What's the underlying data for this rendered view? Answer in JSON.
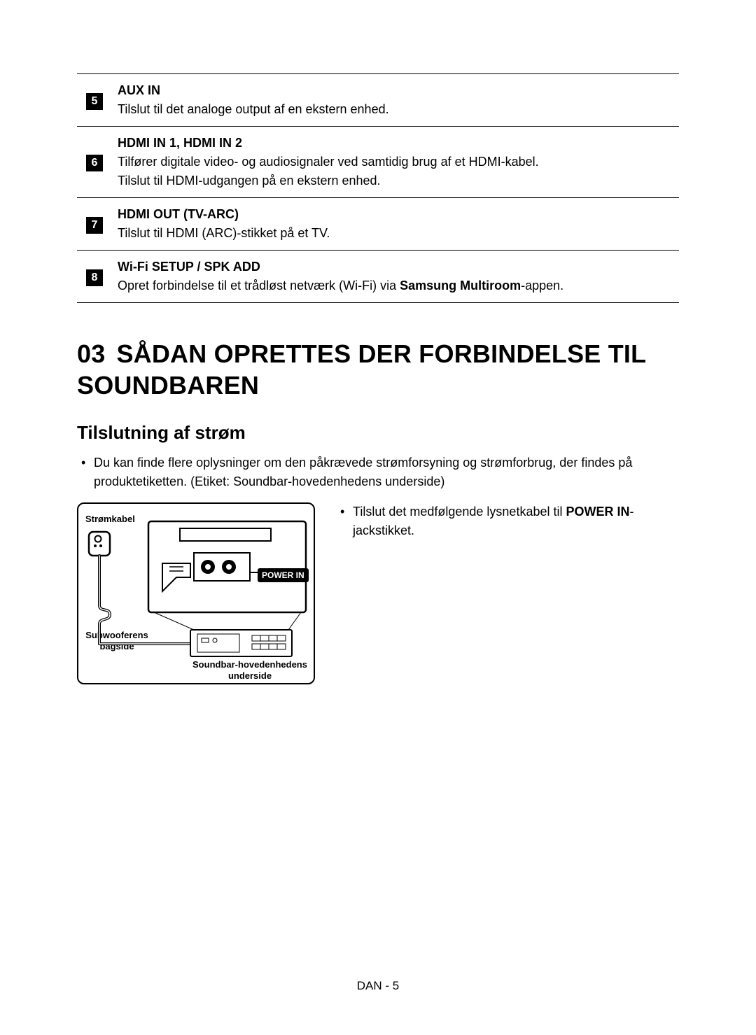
{
  "table": {
    "rows": [
      {
        "num": "5",
        "title": "AUX IN",
        "lines": [
          "Tilslut til det analoge output af en ekstern enhed."
        ]
      },
      {
        "num": "6",
        "title": "HDMI IN 1, HDMI IN 2",
        "lines": [
          "Tilfører digitale video- og audiosignaler ved samtidig brug af et HDMI-kabel.",
          "Tilslut til HDMI-udgangen på en ekstern enhed."
        ]
      },
      {
        "num": "7",
        "title": "HDMI OUT (TV-ARC)",
        "lines": [
          "Tilslut til HDMI (ARC)-stikket på et TV."
        ]
      },
      {
        "num": "8",
        "title": "Wi-Fi SETUP / SPK ADD",
        "lines_rich": [
          {
            "pre": "Opret forbindelse til et trådløst netværk (Wi-Fi) via ",
            "bold": "Samsung Multiroom",
            "post": "-appen."
          }
        ]
      }
    ]
  },
  "section": {
    "number": "03",
    "title": "SÅDAN OPRETTES DER FORBINDELSE TIL SOUNDBAREN"
  },
  "subhead": "Tilslutning af strøm",
  "bullets": {
    "b1": "Du kan finde flere oplysninger om den påkrævede strømforsyning og strømforbrug, der findes på produktetiketten. (Etiket: Soundbar-hovedenhedens underside)",
    "b2_pre": "Tilslut det medfølgende lysnetkabel til ",
    "b2_bold": "POWER IN",
    "b2_post": "-jackstikket."
  },
  "diagram": {
    "label_power_cable": "Strømkabel",
    "label_subwoofer_line1": "Subwooferens",
    "label_subwoofer_line2": "bagside",
    "label_soundbar_line1": "Soundbar-hovedenhedens",
    "label_soundbar_line2": "underside",
    "power_in_badge": "POWER IN",
    "colors": {
      "stroke": "#000000",
      "fill_bg": "#ffffff",
      "badge_bg": "#000000",
      "badge_fg": "#ffffff"
    }
  },
  "footer": "DAN - 5"
}
